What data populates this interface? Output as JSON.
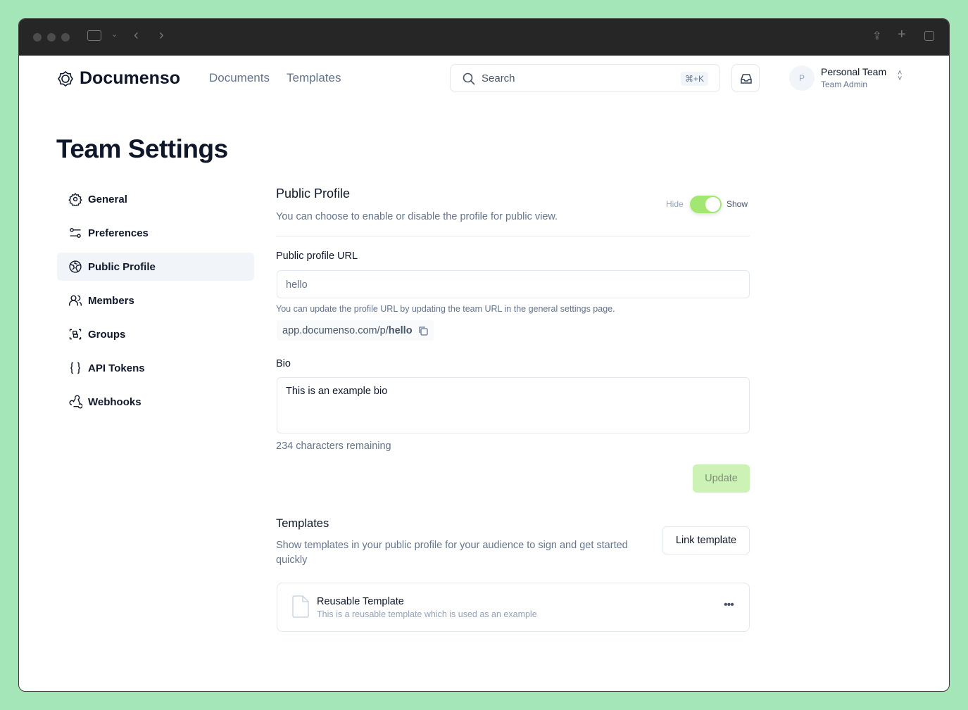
{
  "header": {
    "brand": "Documenso",
    "nav": [
      "Documents",
      "Templates"
    ],
    "search_placeholder": "Search",
    "search_shortcut": "⌘+K",
    "team_name": "Personal Team",
    "team_role": "Team Admin",
    "avatar_initial": "P"
  },
  "page_title": "Team Settings",
  "sidebar": {
    "items": [
      {
        "label": "General",
        "icon": "gear-icon"
      },
      {
        "label": "Preferences",
        "icon": "sliders-icon"
      },
      {
        "label": "Public Profile",
        "icon": "globe-icon",
        "active": true
      },
      {
        "label": "Members",
        "icon": "users-icon"
      },
      {
        "label": "Groups",
        "icon": "groups-icon"
      },
      {
        "label": "API Tokens",
        "icon": "braces-icon"
      },
      {
        "label": "Webhooks",
        "icon": "webhook-icon"
      }
    ]
  },
  "profile": {
    "title": "Public Profile",
    "description": "You can choose to enable or disable the profile for public view.",
    "toggle_off": "Hide",
    "toggle_on": "Show",
    "toggle_state": true,
    "url_label": "Public profile URL",
    "url_value": "hello",
    "url_help": "You can update the profile URL by updating the team URL in the general settings page.",
    "url_prefix": "app.documenso.com/p/",
    "url_slug": "hello",
    "bio_label": "Bio",
    "bio_value": "This is an example bio",
    "bio_remaining": "234 characters remaining",
    "update_label": "Update"
  },
  "templates": {
    "title": "Templates",
    "description": "Show templates in your public profile for your audience to sign and get started quickly",
    "link_label": "Link template",
    "items": [
      {
        "title": "Reusable Template",
        "description": "This is a reusable template which is used as an example"
      }
    ]
  },
  "colors": {
    "accent": "#a2e771",
    "titlebar": "#262626",
    "background": "#a5e6b9"
  }
}
